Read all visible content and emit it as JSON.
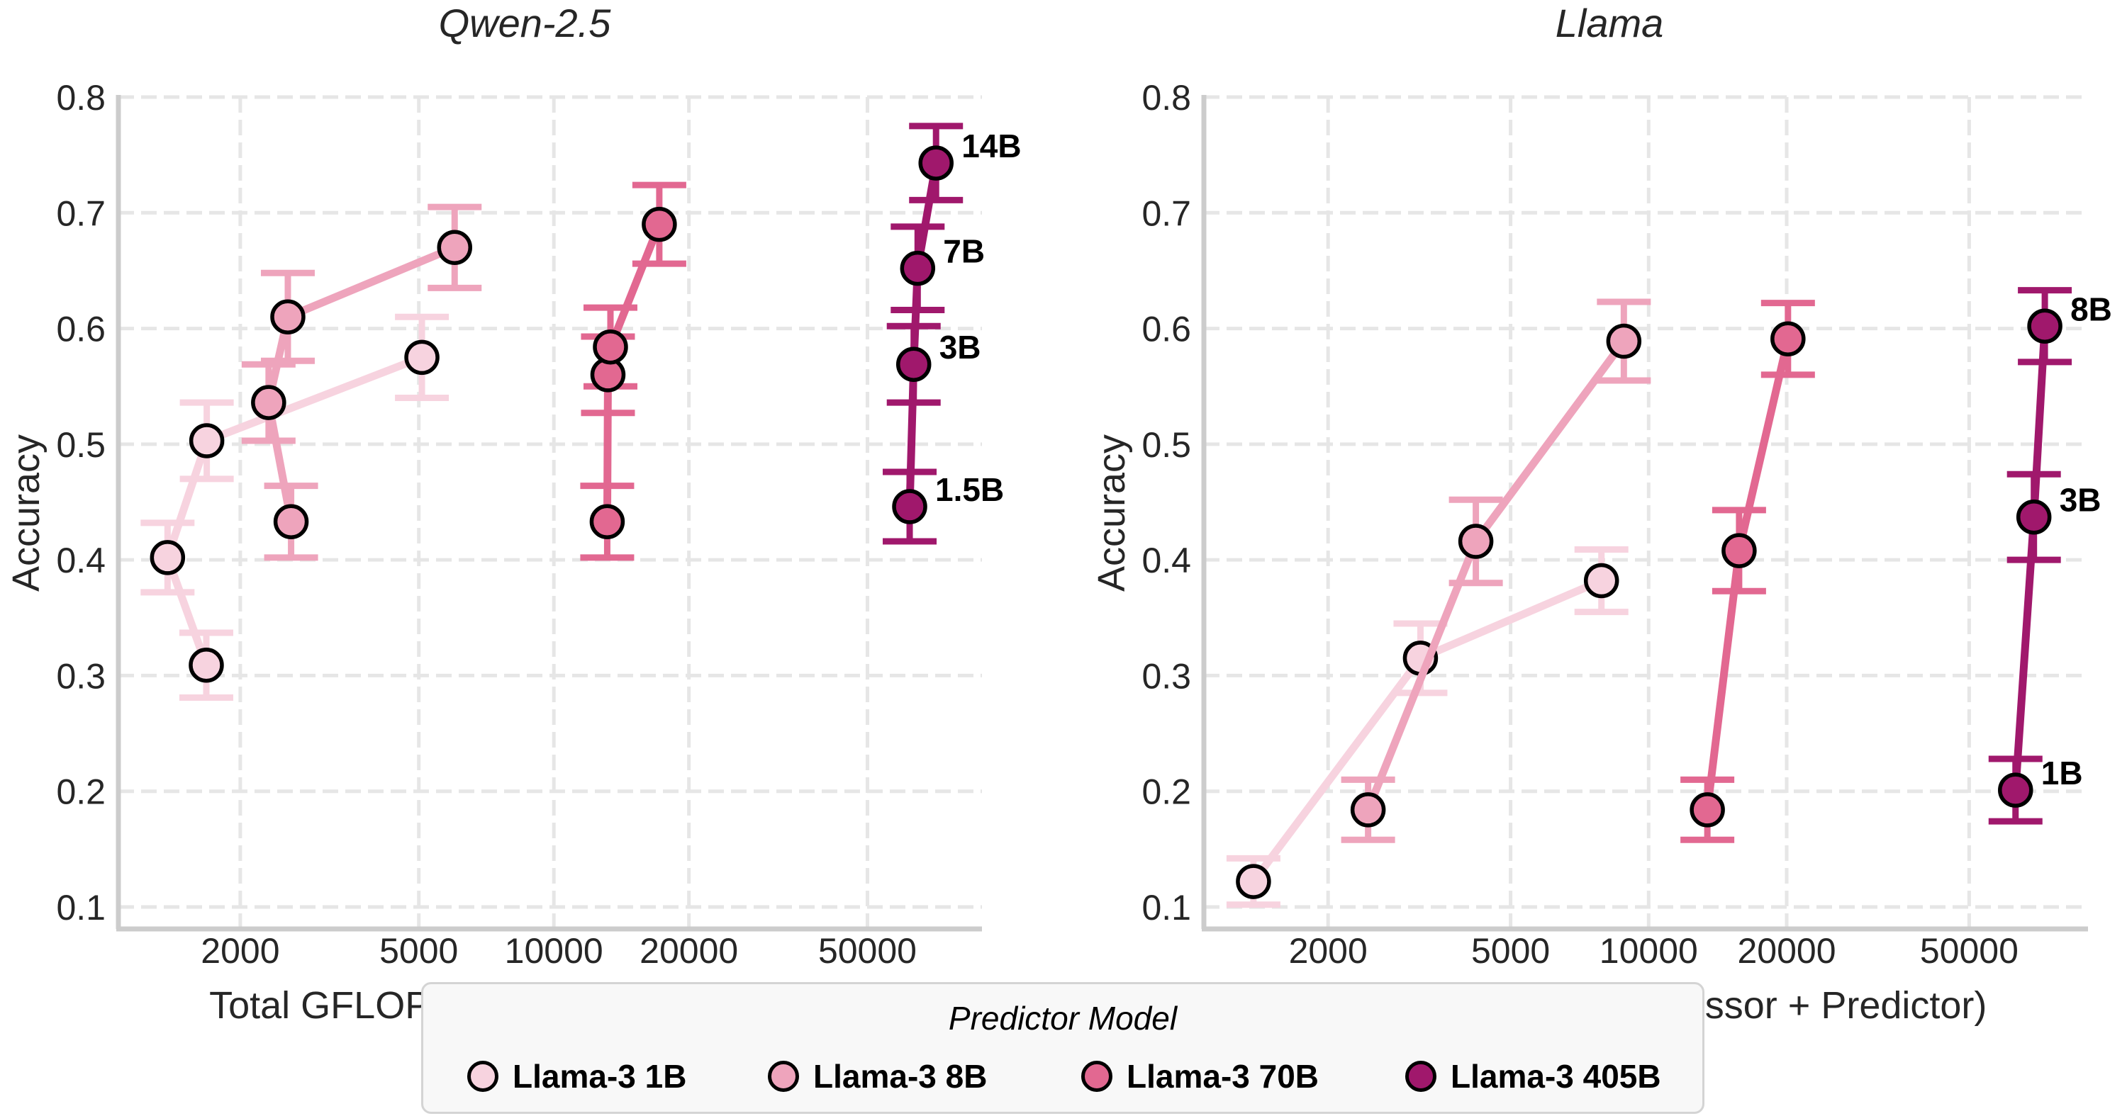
{
  "legend": {
    "title": "Predictor Model",
    "items": [
      {
        "label": "Llama-3 1B",
        "color": "#f7d3df"
      },
      {
        "label": "Llama-3 8B",
        "color": "#eea4bc"
      },
      {
        "label": "Llama-3 70B",
        "color": "#e26891"
      },
      {
        "label": "Llama-3 405B",
        "color": "#a0186c"
      }
    ]
  },
  "chart_data": [
    {
      "type": "line",
      "title": "Qwen-2.5",
      "xlabel": "Total GFLOPs (Compressor + Predictor)",
      "ylabel": "Accuracy",
      "xscale": "log",
      "xlim": [
        1070,
        90000
      ],
      "ylim": [
        0.081,
        0.8
      ],
      "xticks": [
        {
          "value": 2000,
          "label": "2000"
        },
        {
          "value": 5000,
          "label": "5000"
        },
        {
          "value": 10000,
          "label": "10000"
        },
        {
          "value": 20000,
          "label": "20000"
        },
        {
          "value": 50000,
          "label": "50000"
        }
      ],
      "yticks": [
        {
          "value": 0.1,
          "label": "0.1"
        },
        {
          "value": 0.2,
          "label": "0.2"
        },
        {
          "value": 0.3,
          "label": "0.3"
        },
        {
          "value": 0.4,
          "label": "0.4"
        },
        {
          "value": 0.5,
          "label": "0.5"
        },
        {
          "value": 0.6,
          "label": "0.6"
        },
        {
          "value": 0.7,
          "label": "0.7"
        },
        {
          "value": 0.8,
          "label": "0.8"
        }
      ],
      "grid": true,
      "series": [
        {
          "name": "Llama-3 1B",
          "points": [
            {
              "x": 1680,
              "y": 0.309,
              "err": 0.028
            },
            {
              "x": 1377,
              "y": 0.402,
              "err": 0.03
            },
            {
              "x": 1684,
              "y": 0.503,
              "err": 0.033
            },
            {
              "x": 5080,
              "y": 0.575,
              "err": 0.035
            }
          ]
        },
        {
          "name": "Llama-3 8B",
          "points": [
            {
              "x": 2596,
              "y": 0.433,
              "err": 0.031
            },
            {
              "x": 2313,
              "y": 0.536,
              "err": 0.033
            },
            {
              "x": 2553,
              "y": 0.61,
              "err": 0.038
            },
            {
              "x": 6010,
              "y": 0.67,
              "err": 0.035
            }
          ]
        },
        {
          "name": "Llama-3 70B",
          "points": [
            {
              "x": 13150,
              "y": 0.433,
              "err": 0.031
            },
            {
              "x": 13200,
              "y": 0.56,
              "err": 0.033
            },
            {
              "x": 13370,
              "y": 0.584,
              "err": 0.034
            },
            {
              "x": 17180,
              "y": 0.69,
              "err": 0.034
            }
          ]
        },
        {
          "name": "Llama-3 405B",
          "points": [
            {
              "x": 62100,
              "y": 0.446,
              "err": 0.03,
              "label": "1.5B"
            },
            {
              "x": 63400,
              "y": 0.569,
              "err": 0.033,
              "label": "3B"
            },
            {
              "x": 64700,
              "y": 0.652,
              "err": 0.036,
              "label": "7B"
            },
            {
              "x": 71100,
              "y": 0.743,
              "err": 0.032,
              "label": "14B"
            }
          ]
        }
      ]
    },
    {
      "type": "line",
      "title": "Llama",
      "xlabel": "Total GFLOPs (Compressor + Predictor)",
      "ylabel": "Accuracy",
      "xscale": "log",
      "xlim": [
        1072,
        90800
      ],
      "ylim": [
        0.081,
        0.8
      ],
      "xticks": [
        {
          "value": 2000,
          "label": "2000"
        },
        {
          "value": 5000,
          "label": "5000"
        },
        {
          "value": 10000,
          "label": "10000"
        },
        {
          "value": 20000,
          "label": "20000"
        },
        {
          "value": 50000,
          "label": "50000"
        }
      ],
      "yticks": [
        {
          "value": 0.1,
          "label": "0.1"
        },
        {
          "value": 0.2,
          "label": "0.2"
        },
        {
          "value": 0.3,
          "label": "0.3"
        },
        {
          "value": 0.4,
          "label": "0.4"
        },
        {
          "value": 0.5,
          "label": "0.5"
        },
        {
          "value": 0.6,
          "label": "0.6"
        },
        {
          "value": 0.7,
          "label": "0.7"
        },
        {
          "value": 0.8,
          "label": "0.8"
        }
      ],
      "grid": true,
      "series": [
        {
          "name": "Llama-3 1B",
          "points": [
            {
              "x": 1375,
              "y": 0.122,
              "err": 0.02
            },
            {
              "x": 3180,
              "y": 0.315,
              "err": 0.03
            },
            {
              "x": 7890,
              "y": 0.382,
              "err": 0.027
            }
          ]
        },
        {
          "name": "Llama-3 8B",
          "points": [
            {
              "x": 2445,
              "y": 0.184,
              "err": 0.026
            },
            {
              "x": 4200,
              "y": 0.416,
              "err": 0.036
            },
            {
              "x": 8830,
              "y": 0.589,
              "err": 0.034
            }
          ]
        },
        {
          "name": "Llama-3 70B",
          "points": [
            {
              "x": 13430,
              "y": 0.184,
              "err": 0.026
            },
            {
              "x": 15750,
              "y": 0.408,
              "err": 0.035
            },
            {
              "x": 20130,
              "y": 0.591,
              "err": 0.031
            }
          ]
        },
        {
          "name": "Llama-3 405B",
          "points": [
            {
              "x": 63100,
              "y": 0.201,
              "err": 0.027,
              "label": "1B"
            },
            {
              "x": 69200,
              "y": 0.437,
              "err": 0.037,
              "label": "3B"
            },
            {
              "x": 73100,
              "y": 0.602,
              "err": 0.031,
              "label": "8B"
            }
          ]
        }
      ]
    }
  ]
}
